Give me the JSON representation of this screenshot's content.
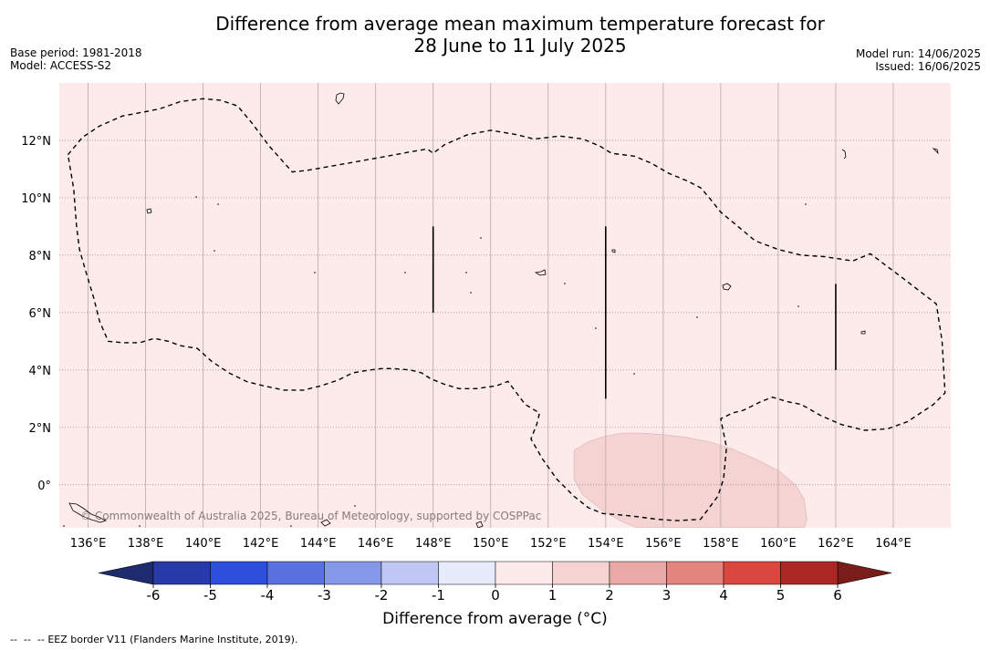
{
  "title": {
    "line1": "Difference from average mean maximum temperature forecast for",
    "line2": "28 June to 11 July 2025"
  },
  "meta_left": {
    "base_period": "Base period: 1981-2018",
    "model": "Model: ACCESS-S2"
  },
  "meta_right": {
    "model_run": "Model run: 14/06/2025",
    "issued": "Issued: 16/06/2025"
  },
  "copyright": "© Commonwealth of Australia 2025, Bureau of Meteorology, supported by COSPPac",
  "map": {
    "lon_range": [
      135,
      166
    ],
    "lat_range": [
      -1.5,
      14
    ],
    "lon_ticks": [
      "136°E",
      "138°E",
      "140°E",
      "142°E",
      "144°E",
      "146°E",
      "148°E",
      "150°E",
      "152°E",
      "154°E",
      "156°E",
      "158°E",
      "160°E",
      "162°E",
      "164°E"
    ],
    "lat_ticks": [
      "12°N",
      "10°N",
      "8°N",
      "6°N",
      "4°N",
      "2°N",
      "0°"
    ],
    "background_color": "#fdeaea",
    "anomaly_patch_color": "#f4d3d2",
    "anomaly_patch_value": "1 to 2 °C",
    "eez_border": [
      [
        135.3,
        11.5
      ],
      [
        135.8,
        12.1
      ],
      [
        136.4,
        12.5
      ],
      [
        137.2,
        12.85
      ],
      [
        138.0,
        13.0
      ],
      [
        138.5,
        13.1
      ],
      [
        139.2,
        13.35
      ],
      [
        140.0,
        13.45
      ],
      [
        140.6,
        13.4
      ],
      [
        141.2,
        13.2
      ],
      [
        141.7,
        12.6
      ],
      [
        142.3,
        11.8
      ],
      [
        143.1,
        10.9
      ],
      [
        143.6,
        10.95
      ],
      [
        145.0,
        11.2
      ],
      [
        146.4,
        11.45
      ],
      [
        147.2,
        11.6
      ],
      [
        147.8,
        11.7
      ],
      [
        148.0,
        11.55
      ],
      [
        148.4,
        11.85
      ],
      [
        149.2,
        12.2
      ],
      [
        150.0,
        12.35
      ],
      [
        150.9,
        12.2
      ],
      [
        151.5,
        12.05
      ],
      [
        152.0,
        12.1
      ],
      [
        152.4,
        12.15
      ],
      [
        153.2,
        12.05
      ],
      [
        153.8,
        11.8
      ],
      [
        154.2,
        11.55
      ],
      [
        155.0,
        11.45
      ],
      [
        155.6,
        11.2
      ],
      [
        156.2,
        10.85
      ],
      [
        156.8,
        10.6
      ],
      [
        157.3,
        10.35
      ],
      [
        157.6,
        10.0
      ],
      [
        158.0,
        9.5
      ],
      [
        158.6,
        9.0
      ],
      [
        159.2,
        8.5
      ],
      [
        160.0,
        8.2
      ],
      [
        160.8,
        8.0
      ],
      [
        161.6,
        7.95
      ],
      [
        162.6,
        7.8
      ],
      [
        163.2,
        8.05
      ],
      [
        164.2,
        7.3
      ],
      [
        165.5,
        6.3
      ],
      [
        165.7,
        5.0
      ],
      [
        165.8,
        3.2
      ],
      [
        165.4,
        2.8
      ],
      [
        164.5,
        2.2
      ],
      [
        163.8,
        1.95
      ],
      [
        163.0,
        1.9
      ],
      [
        162.2,
        2.1
      ],
      [
        161.5,
        2.4
      ],
      [
        160.8,
        2.8
      ],
      [
        160.3,
        2.9
      ],
      [
        159.8,
        3.05
      ],
      [
        159.4,
        2.9
      ],
      [
        158.8,
        2.6
      ],
      [
        158.4,
        2.5
      ],
      [
        158.0,
        2.3
      ],
      [
        158.2,
        1.3
      ],
      [
        158.1,
        0.2
      ],
      [
        157.9,
        -0.4
      ],
      [
        157.6,
        -0.8
      ],
      [
        157.3,
        -1.2
      ],
      [
        156.5,
        -1.25
      ],
      [
        155.8,
        -1.2
      ],
      [
        155.0,
        -1.1
      ],
      [
        154.5,
        -1.05
      ],
      [
        153.9,
        -1.0
      ],
      [
        153.4,
        -0.8
      ],
      [
        152.9,
        -0.4
      ],
      [
        152.3,
        0.2
      ],
      [
        151.8,
        0.9
      ],
      [
        151.4,
        1.6
      ],
      [
        151.6,
        2.1
      ],
      [
        151.7,
        2.5
      ],
      [
        151.2,
        2.8
      ],
      [
        150.9,
        3.2
      ],
      [
        150.6,
        3.6
      ],
      [
        150.2,
        3.45
      ],
      [
        149.5,
        3.35
      ],
      [
        148.9,
        3.35
      ],
      [
        148.4,
        3.5
      ],
      [
        147.9,
        3.7
      ],
      [
        147.6,
        3.9
      ],
      [
        147.2,
        4.0
      ],
      [
        146.6,
        4.05
      ],
      [
        146.2,
        4.05
      ],
      [
        145.8,
        4.0
      ],
      [
        145.2,
        3.9
      ],
      [
        144.7,
        3.65
      ],
      [
        144.1,
        3.45
      ],
      [
        143.5,
        3.3
      ],
      [
        142.8,
        3.3
      ],
      [
        142.1,
        3.45
      ],
      [
        141.5,
        3.6
      ],
      [
        140.9,
        3.9
      ],
      [
        140.3,
        4.3
      ],
      [
        139.8,
        4.75
      ],
      [
        139.2,
        4.85
      ],
      [
        138.8,
        5.0
      ],
      [
        138.3,
        5.1
      ],
      [
        137.8,
        4.95
      ],
      [
        137.2,
        4.95
      ],
      [
        136.7,
        5.0
      ],
      [
        136.4,
        5.7
      ],
      [
        136.2,
        6.5
      ],
      [
        135.9,
        7.5
      ],
      [
        135.7,
        8.2
      ],
      [
        135.6,
        9.0
      ],
      [
        135.5,
        10.3
      ],
      [
        135.3,
        11.5
      ]
    ],
    "eez_vertical_segments": [
      [
        148.0,
        9.0,
        6.0
      ],
      [
        154.0,
        9.0,
        3.0
      ],
      [
        162.0,
        7.0,
        4.0
      ]
    ],
    "anomaly_patch": [
      [
        152.9,
        1.2
      ],
      [
        153.4,
        1.5
      ],
      [
        154.0,
        1.7
      ],
      [
        154.6,
        1.8
      ],
      [
        155.2,
        1.8
      ],
      [
        156.0,
        1.75
      ],
      [
        156.8,
        1.65
      ],
      [
        157.6,
        1.5
      ],
      [
        158.4,
        1.25
      ],
      [
        159.2,
        0.9
      ],
      [
        160.0,
        0.5
      ],
      [
        160.6,
        0.0
      ],
      [
        160.9,
        -0.5
      ],
      [
        161.0,
        -1.2
      ],
      [
        160.9,
        -1.5
      ],
      [
        155.1,
        -1.5
      ],
      [
        154.6,
        -1.3
      ],
      [
        153.9,
        -0.9
      ],
      [
        153.2,
        -0.35
      ],
      [
        152.9,
        0.2
      ],
      [
        152.9,
        0.7
      ]
    ]
  },
  "colorbar": {
    "ticks": [
      "-6",
      "-5",
      "-4",
      "-3",
      "-2",
      "-1",
      "0",
      "1",
      "2",
      "3",
      "4",
      "5",
      "6"
    ],
    "colors": [
      "#2839a8",
      "#2e4fdb",
      "#5a71e0",
      "#8597e8",
      "#bfc8f4",
      "#e8ebfb",
      "#fdeaea",
      "#f4d3d2",
      "#eaa9a6",
      "#e4847f",
      "#d9473f",
      "#aa2723"
    ],
    "under_color": "#1e2c6f",
    "over_color": "#7a1c1a",
    "label": "Difference from average (°C)"
  },
  "footer": {
    "symbol": "--  --  --",
    "text": "EEZ border V11 (Flanders Marine Institute, 2019)."
  }
}
